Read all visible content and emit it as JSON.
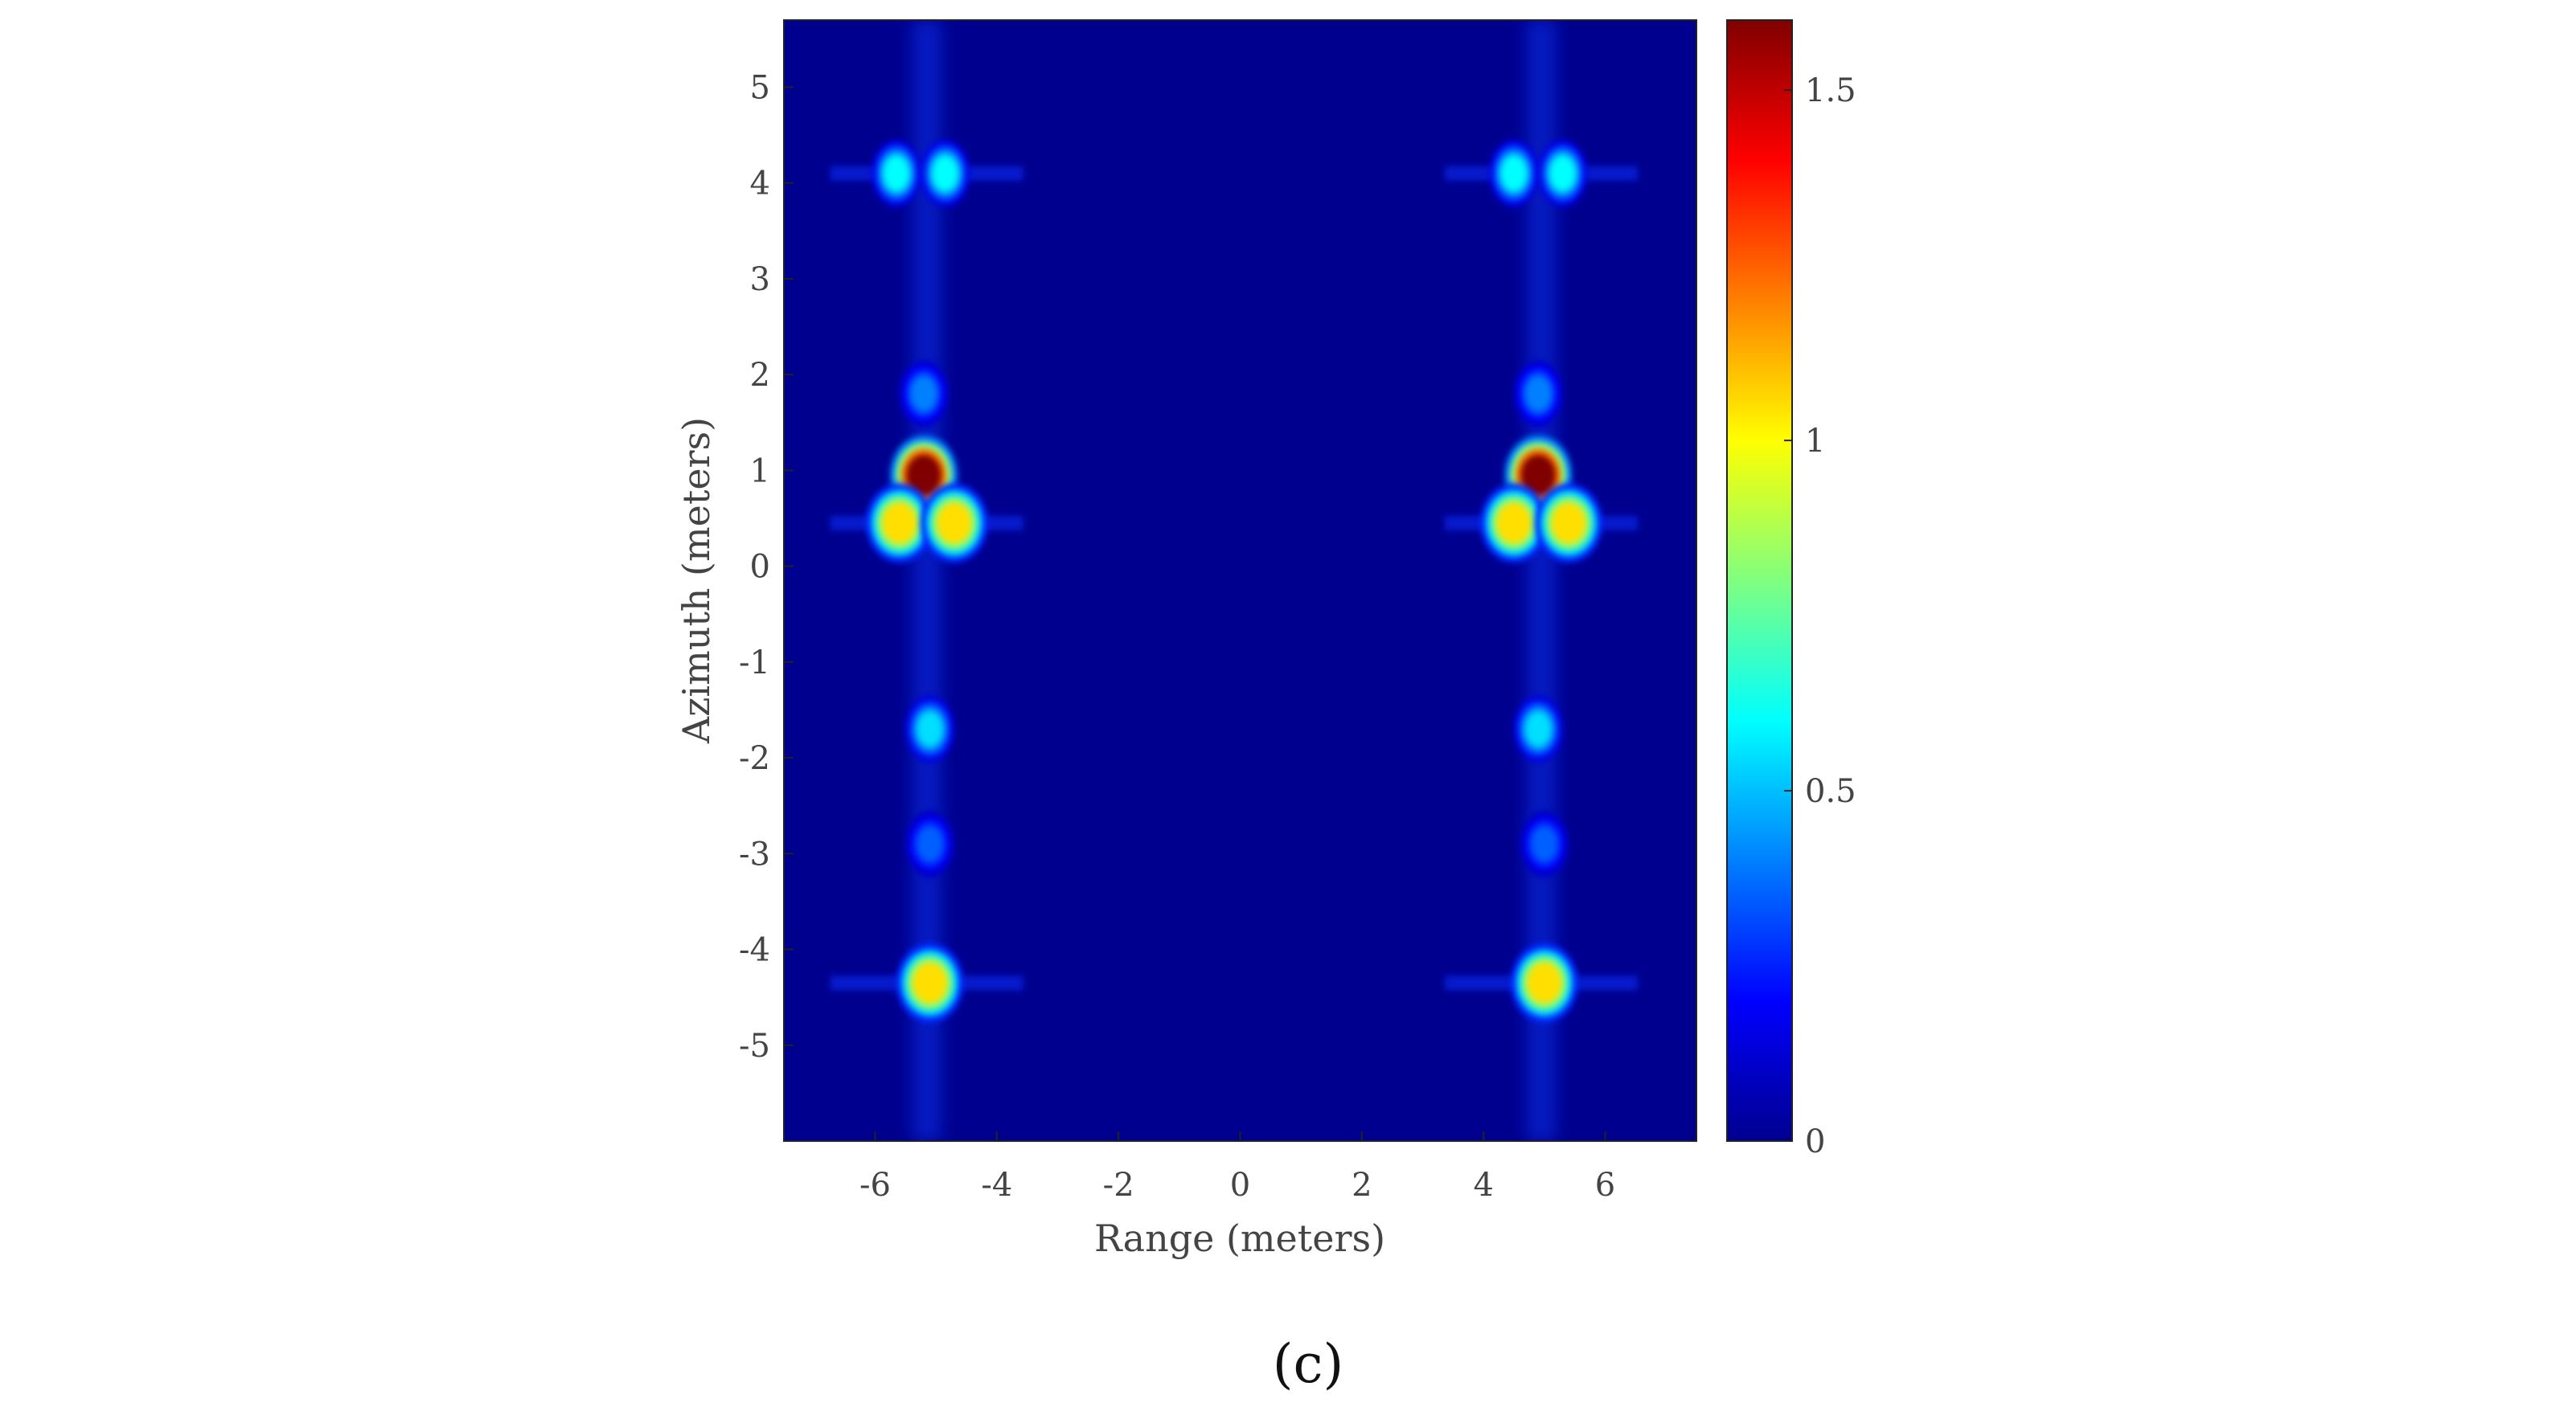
{
  "chart_data": {
    "type": "heatmap",
    "title": "",
    "xlabel": "Range (meters)",
    "ylabel": "Azimuth (meters)",
    "xlim": [
      -7.5,
      7.5
    ],
    "ylim": [
      -6,
      5.7
    ],
    "x_ticks": [
      -6,
      -4,
      -2,
      0,
      2,
      4,
      6
    ],
    "y_ticks": [
      5,
      4,
      3,
      2,
      1,
      0,
      -1,
      -2,
      -3,
      -4,
      -5
    ],
    "colormap": "jet",
    "background_color": "#00008f",
    "colorbar": {
      "range": [
        0,
        1.6
      ],
      "ticks": [
        0,
        0.5,
        1,
        1.5
      ],
      "tick_labels": [
        "0",
        "0.5",
        "1",
        "1.5"
      ],
      "placement": "right"
    },
    "peaks": [
      {
        "x": -5.2,
        "y": 0.95,
        "value": 1.6
      },
      {
        "x": -5.6,
        "y": 0.45,
        "value": 1.05
      },
      {
        "x": -4.7,
        "y": 0.45,
        "value": 1.05
      },
      {
        "x": -5.65,
        "y": 4.1,
        "value": 0.6
      },
      {
        "x": -4.85,
        "y": 4.1,
        "value": 0.6
      },
      {
        "x": -5.1,
        "y": -4.35,
        "value": 1.05
      },
      {
        "x": -5.2,
        "y": 1.8,
        "value": 0.4
      },
      {
        "x": -5.1,
        "y": -1.7,
        "value": 0.55
      },
      {
        "x": -5.1,
        "y": -2.9,
        "value": 0.35
      },
      {
        "x": 4.9,
        "y": 0.95,
        "value": 1.6
      },
      {
        "x": 4.5,
        "y": 0.45,
        "value": 1.05
      },
      {
        "x": 5.4,
        "y": 0.45,
        "value": 1.05
      },
      {
        "x": 4.5,
        "y": 4.1,
        "value": 0.6
      },
      {
        "x": 5.3,
        "y": 4.1,
        "value": 0.6
      },
      {
        "x": 5.0,
        "y": -4.35,
        "value": 1.05
      },
      {
        "x": 4.9,
        "y": 1.8,
        "value": 0.4
      },
      {
        "x": 4.9,
        "y": -1.7,
        "value": 0.55
      },
      {
        "x": 5.0,
        "y": -2.9,
        "value": 0.35
      }
    ]
  },
  "caption": "(c)"
}
